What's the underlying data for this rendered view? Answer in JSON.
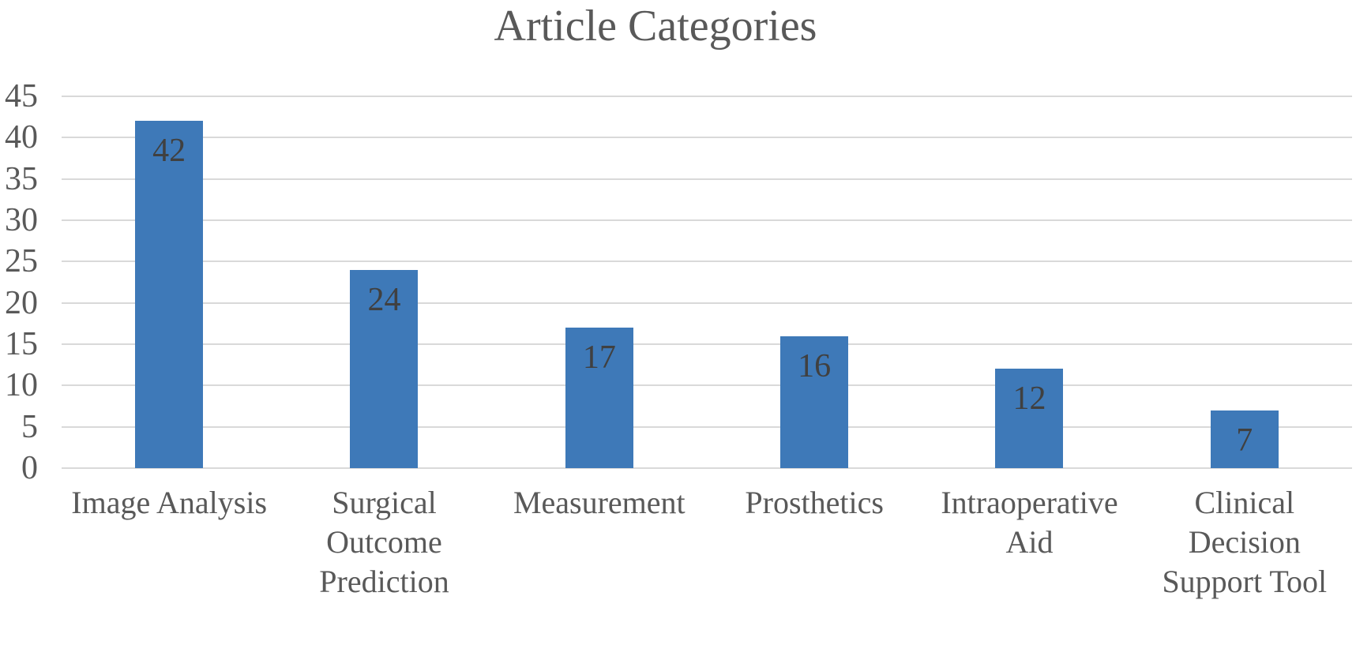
{
  "chart_data": {
    "type": "bar",
    "title": "Article Categories",
    "categories": [
      "Image Analysis",
      "Surgical Outcome Prediction",
      "Measurement",
      "Prosthetics",
      "Intraoperative Aid",
      "Clinical Decision Support Tool"
    ],
    "values": [
      42,
      24,
      17,
      16,
      12,
      7
    ],
    "xlabel": "",
    "ylabel": "",
    "ylim": [
      0,
      45
    ],
    "yticks": [
      0,
      5,
      10,
      15,
      20,
      25,
      30,
      35,
      40,
      45
    ],
    "grid": "horizontal",
    "legend_position": "none",
    "data_label_position": "inside-end",
    "colors": {
      "bar": "#3E79B8",
      "gridline": "#D9D9D9",
      "axis_text": "#595959",
      "data_label": "#404040",
      "title_text": "#595959",
      "background": "#FFFFFF"
    }
  }
}
